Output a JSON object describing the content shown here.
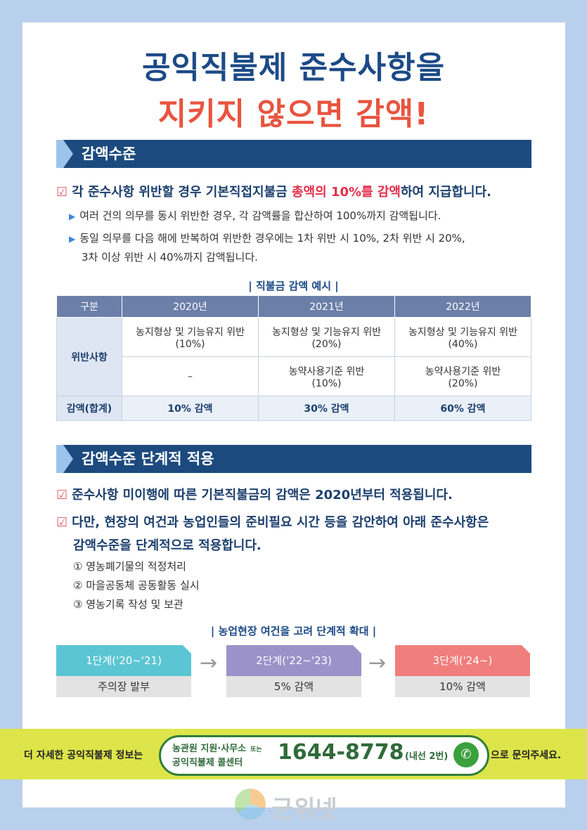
{
  "title": {
    "line1": "공익직불제 준수사항을",
    "line2": "지키지 않으면 감액!"
  },
  "section1": {
    "heading": "감액수준",
    "check_pre": "각 준수사항 위반할 경우 기본직접지불금 ",
    "check_highlight": "총액의 10%를 감액",
    "check_post": "하여 지급합니다.",
    "bullet1": "여러 건의 의무를 동시 위반한 경우, 각 감액률을 합산하여 100%까지 감액됩니다.",
    "bullet2_line1": "동일 의무를 다음 해에 반복하여 위반한 경우에는 1차 위반 시 10%, 2차 위반 시 20%,",
    "bullet2_line2": "3차 이상 위반 시 40%까지 감액됩니다."
  },
  "table": {
    "caption": "| 직불금 감액 예시 |",
    "headers": [
      "구분",
      "2020년",
      "2021년",
      "2022년"
    ],
    "row_label": "위반사항",
    "row1": [
      {
        "l1": "농지형상 및 기능유지 위반",
        "l2": "(10%)"
      },
      {
        "l1": "농지형상 및 기능유지 위반",
        "l2": "(20%)"
      },
      {
        "l1": "농지형상 및 기능유지 위반",
        "l2": "(40%)"
      }
    ],
    "row2": [
      {
        "l1": "–",
        "l2": ""
      },
      {
        "l1": "농약사용기준 위반",
        "l2": "(10%)"
      },
      {
        "l1": "농약사용기준 위반",
        "l2": "(20%)"
      }
    ],
    "sum_label": "감액(합계)",
    "sums": [
      "10% 감액",
      "30% 감액",
      "60% 감액"
    ]
  },
  "section2": {
    "heading": "감액수준 단계적 적용",
    "check1": "준수사항 미이행에 따른 기본직불금의 감액은 2020년부터 적용됩니다.",
    "check2_line1": "다만, 현장의 여건과 농업인들의 준비필요 시간 등을 감안하여 아래 준수사항은",
    "check2_line2": "감액수준을 단계적으로 적용합니다.",
    "items": [
      "① 영농폐기물의 적정처리",
      "② 마을공동체 공동활동 실시",
      "③ 영농기록 작성 및 보관"
    ],
    "caption": "| 농업현장 여건을 고려 단계적 확대 |",
    "stages": [
      {
        "head": "1단계('20~'21)",
        "body": "주의장 발부",
        "color": "#5bc5d3"
      },
      {
        "head": "2단계('22~'23)",
        "body": "5% 감액",
        "color": "#9b92c9"
      },
      {
        "head": "3단계('24~)",
        "body": "10% 감액",
        "color": "#f07e7c"
      }
    ]
  },
  "footer": {
    "prefix": "더 자세한 공익직불제 정보는",
    "line1": "농관원 지원·사무소",
    "or": "또는",
    "line2": "공익직불제 콜센터",
    "phone": "1644-8778",
    "ext": "(내선 2번)",
    "suffix": "으로 문의주세요."
  },
  "watermark": "군위넷",
  "colors": {
    "navy": "#1c4a86",
    "red": "#e8543f",
    "footer_bg": "#dde54a",
    "border": "#b9d0ed"
  }
}
